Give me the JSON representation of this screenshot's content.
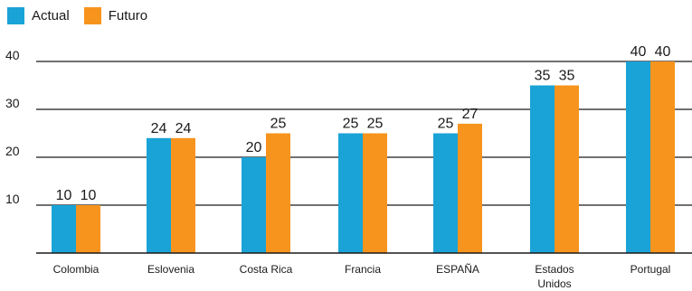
{
  "colors": {
    "actual": "#1aa3d6",
    "futuro": "#f7941d",
    "grid": "#1a1a1a",
    "text": "#1a1a1a"
  },
  "legend": {
    "actual": "Actual",
    "futuro": "Futuro"
  },
  "chart_data": {
    "type": "bar",
    "categories": [
      "Colombia",
      "Eslovenia",
      "Costa Rica",
      "Francia",
      "ESPAÑA",
      "Estados Unidos",
      "Portugal"
    ],
    "category_lines": [
      [
        "Colombia"
      ],
      [
        "Eslovenia"
      ],
      [
        "Costa Rica"
      ],
      [
        "Francia"
      ],
      [
        "ESPAÑA"
      ],
      [
        "Estados",
        "Unidos"
      ],
      [
        "Portugal"
      ]
    ],
    "series": [
      {
        "name": "Actual",
        "values": [
          10,
          24,
          20,
          25,
          25,
          35,
          40
        ]
      },
      {
        "name": "Futuro",
        "values": [
          10,
          24,
          25,
          25,
          27,
          35,
          40
        ]
      }
    ],
    "y_ticks": [
      10,
      20,
      30,
      40
    ],
    "ylim": [
      0,
      40
    ],
    "grid": true,
    "legend_position": "top-left"
  }
}
